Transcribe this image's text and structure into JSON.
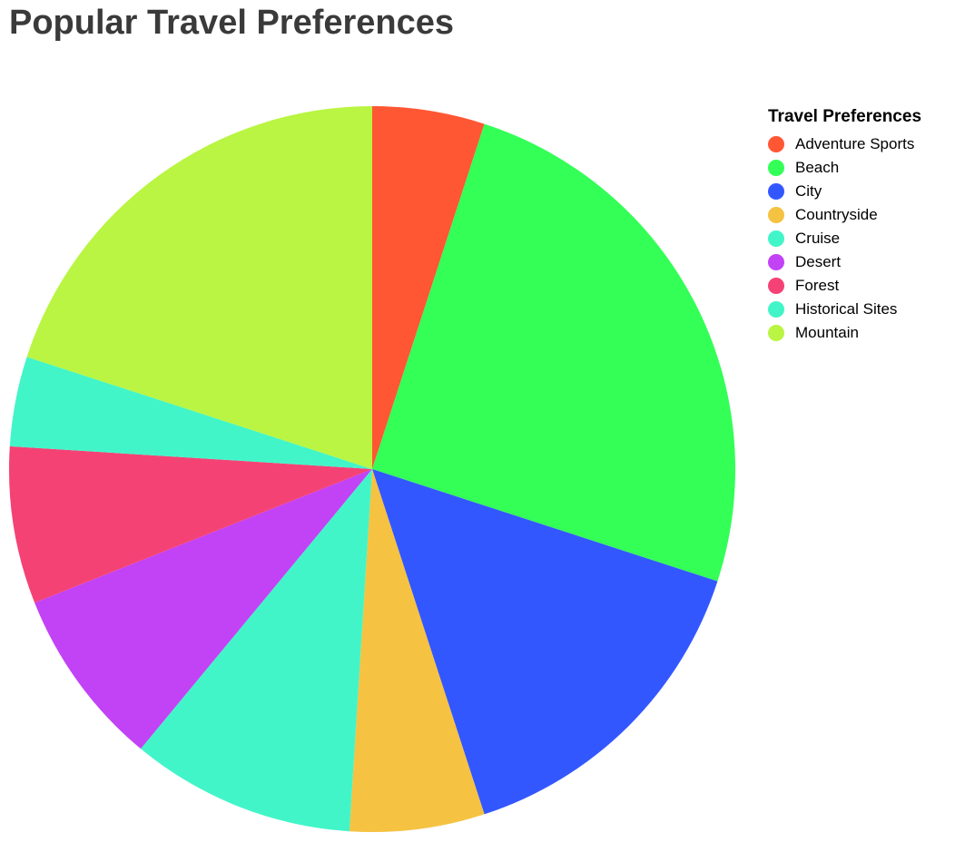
{
  "chart_data": {
    "type": "pie",
    "title": "Popular Travel Preferences",
    "legend_title": "Travel Preferences",
    "legend_position": "right",
    "categories": [
      "Adventure Sports",
      "Beach",
      "City",
      "Countryside",
      "Cruise",
      "Desert",
      "Forest",
      "Historical Sites",
      "Mountain"
    ],
    "values": [
      5,
      25,
      15,
      6,
      10,
      8,
      7,
      4,
      20
    ],
    "colors": [
      "#ff5733",
      "#33ff57",
      "#3357ff",
      "#f5c242",
      "#42f5c8",
      "#c242f5",
      "#f54275",
      "#42f5c8",
      "#b9f542"
    ]
  }
}
